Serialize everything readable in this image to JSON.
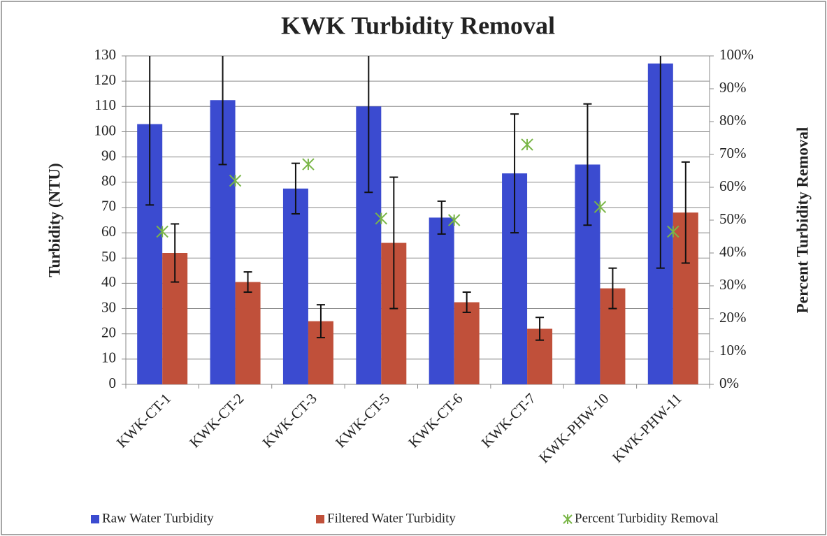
{
  "chart_data": {
    "type": "bar",
    "title": "KWK Turbidity Removal",
    "y_label": "Turbidity (NTU)",
    "y2_label": "Percent Turbidity Removal",
    "categories": [
      "KWK-CT-1",
      "KWK-CT-2",
      "KWK-CT-3",
      "KWK-CT-5",
      "KWK-CT-6",
      "KWK-CT-7",
      "KWK-PHW-10",
      "KWK-PHW-11"
    ],
    "series": [
      {
        "name": "Raw Water Turbidity",
        "type": "bar",
        "color": "#3b4bd0",
        "values": [
          103,
          112.5,
          77.5,
          110,
          66,
          83.5,
          87,
          127
        ],
        "error": [
          32,
          25.5,
          10,
          34,
          6.5,
          23.5,
          24,
          81
        ]
      },
      {
        "name": "Filtered Water Turbidity",
        "type": "bar",
        "color": "#c0503a",
        "values": [
          52,
          40.5,
          25,
          56,
          32.5,
          22,
          38,
          68
        ],
        "error": [
          11.5,
          4,
          6.5,
          26,
          4,
          4.5,
          8,
          20
        ]
      },
      {
        "name": "Percent Turbidity Removal",
        "type": "scatter",
        "axis": "y2",
        "color": "#7ab648",
        "values": [
          46.5,
          62,
          67,
          50.5,
          50,
          73,
          54,
          46.5
        ]
      }
    ],
    "ylim": [
      0,
      130
    ],
    "yticks": [
      0,
      10,
      20,
      30,
      40,
      50,
      60,
      70,
      80,
      90,
      100,
      110,
      120,
      130
    ],
    "y2lim": [
      0,
      100
    ],
    "y2ticks": [
      {
        "value": 0,
        "label": "0%"
      },
      {
        "value": 10,
        "label": "10%"
      },
      {
        "value": 20,
        "label": "20%"
      },
      {
        "value": 30,
        "label": "30%"
      },
      {
        "value": 40,
        "label": "40%"
      },
      {
        "value": 50,
        "label": "50%"
      },
      {
        "value": 60,
        "label": "60%"
      },
      {
        "value": 70,
        "label": "70%"
      },
      {
        "value": 80,
        "label": "80%"
      },
      {
        "value": 90,
        "label": "90%"
      },
      {
        "value": 100,
        "label": "100%"
      }
    ],
    "grid": true,
    "legend": "bottom"
  }
}
